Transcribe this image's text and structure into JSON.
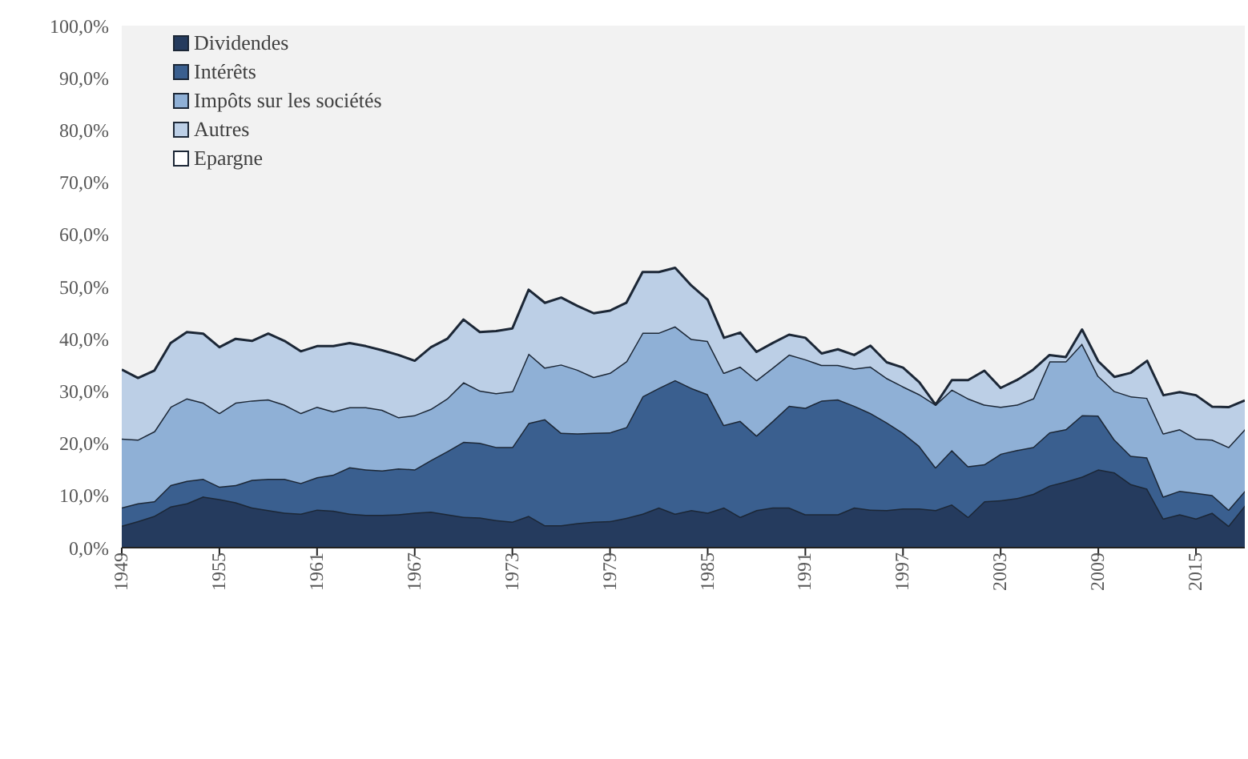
{
  "chart_data": {
    "type": "area",
    "stacked": true,
    "x": [
      1949,
      1950,
      1951,
      1952,
      1953,
      1954,
      1955,
      1956,
      1957,
      1958,
      1959,
      1960,
      1961,
      1962,
      1963,
      1964,
      1965,
      1966,
      1967,
      1968,
      1969,
      1970,
      1971,
      1972,
      1973,
      1974,
      1975,
      1976,
      1977,
      1978,
      1979,
      1980,
      1981,
      1982,
      1983,
      1984,
      1985,
      1986,
      1987,
      1988,
      1989,
      1990,
      1991,
      1992,
      1993,
      1994,
      1995,
      1996,
      1997,
      1998,
      1999,
      2000,
      2001,
      2002,
      2003,
      2004,
      2005,
      2006,
      2007,
      2008,
      2009,
      2010,
      2011,
      2012,
      2013,
      2014,
      2015,
      2016,
      2017,
      2018
    ],
    "series": [
      {
        "name": "Dividendes",
        "color": "#253b5e",
        "values": [
          4.2,
          5.1,
          6.1,
          7.9,
          8.5,
          9.8,
          9.3,
          8.7,
          7.7,
          7.2,
          6.7,
          6.5,
          7.3,
          7.1,
          6.5,
          6.3,
          6.3,
          6.4,
          6.7,
          6.9,
          6.4,
          5.9,
          5.8,
          5.3,
          5,
          6.1,
          4.3,
          4.3,
          4.7,
          5,
          5.1,
          5.7,
          6.5,
          7.7,
          6.5,
          7.2,
          6.7,
          7.7,
          5.9,
          7.2,
          7.7,
          7.7,
          6.4,
          6.4,
          6.4,
          7.7,
          7.3,
          7.2,
          7.5,
          7.5,
          7.2,
          8.3,
          5.9,
          8.9,
          9.1,
          9.5,
          10.3,
          11.9,
          12.7,
          13.6,
          15,
          14.4,
          12.2,
          11.3,
          5.6,
          6.4,
          5.6,
          6.7,
          4.2,
          8.1
        ]
      },
      {
        "name": "Intérêts",
        "color": "#3a5f8f",
        "values": [
          3.5,
          3.4,
          2.8,
          4.1,
          4.3,
          3.4,
          2.4,
          3.3,
          5.3,
          6,
          6.5,
          5.9,
          6.2,
          6.9,
          8.9,
          8.7,
          8.5,
          8.8,
          8.3,
          9.9,
          12.1,
          14.4,
          14.3,
          14,
          14.3,
          17.8,
          20.3,
          17.7,
          17.2,
          17,
          17,
          17.4,
          22.5,
          22.9,
          25.6,
          23.4,
          22.7,
          15.8,
          18.4,
          14.3,
          16.6,
          19.5,
          20.4,
          21.8,
          22,
          19.5,
          18.5,
          16.8,
          14.5,
          12,
          8.2,
          10.4,
          9.7,
          7.1,
          8.9,
          9.2,
          9,
          10.2,
          10,
          11.8,
          10.3,
          6.3,
          5.4,
          6,
          4.2,
          4.5,
          4.9,
          3.4,
          3.1,
          2.8
        ]
      },
      {
        "name": "Impôts sur les sociétés",
        "color": "#8fb0d6",
        "values": [
          13.2,
          12.2,
          13.4,
          15,
          15.8,
          14.6,
          14.1,
          15.8,
          15.2,
          15.2,
          14.2,
          13.4,
          13.5,
          12.1,
          11.5,
          11.9,
          11.6,
          9.8,
          10.4,
          9.8,
          10.1,
          11.4,
          10,
          10.3,
          10.7,
          13.3,
          9.9,
          13.1,
          12.2,
          10.7,
          11.4,
          12.6,
          12.2,
          10.6,
          10.3,
          9.4,
          10.2,
          10,
          10.4,
          10.6,
          10.2,
          9.8,
          9.3,
          6.8,
          6.6,
          7.1,
          8.9,
          8.5,
          8.9,
          9.9,
          12,
          11.6,
          13,
          11.4,
          9,
          8.7,
          9.3,
          13.6,
          13,
          13.7,
          7.6,
          9.3,
          11.4,
          11.4,
          12.1,
          11.8,
          10.4,
          10.6,
          12,
          11.8
        ]
      },
      {
        "name": "Autres",
        "color": "#bccfe6",
        "values": [
          13.2,
          11.8,
          11.6,
          12.2,
          12.7,
          13.2,
          12.6,
          12.2,
          11.4,
          12.6,
          12.2,
          11.8,
          11.6,
          12.5,
          12.3,
          11.7,
          11.4,
          11.9,
          10.4,
          11.8,
          11.4,
          12,
          11.2,
          11.9,
          12,
          12.2,
          12.4,
          12.8,
          12.2,
          12.2,
          11.9,
          11.2,
          11.6,
          11.6,
          11.2,
          10.2,
          7.9,
          6.7,
          6.5,
          5.4,
          4.7,
          3.8,
          4.1,
          2.2,
          3,
          2.6,
          4,
          3,
          3.6,
          2.3,
          0,
          1.8,
          3.5,
          6.5,
          3.6,
          4.7,
          5.5,
          1.2,
          0.8,
          2.7,
          2.8,
          2.7,
          4.5,
          7.1,
          7.3,
          7.1,
          8.3,
          6.3,
          7.6,
          5.5
        ]
      },
      {
        "name": "Epargne",
        "color": "#ffffff",
        "values": [
          null,
          null,
          null,
          null,
          null,
          null,
          null,
          null,
          null,
          null,
          null,
          null,
          null,
          null,
          null,
          null,
          null,
          null,
          null,
          null,
          null,
          null,
          null,
          null,
          null,
          null,
          null,
          null,
          null,
          null,
          null,
          null,
          null,
          null,
          null,
          null,
          null,
          null,
          null,
          null,
          null,
          null,
          null,
          null,
          null,
          null,
          null,
          null,
          null,
          null,
          null,
          null,
          null,
          null,
          null,
          null,
          null,
          null,
          null,
          null,
          null,
          null,
          null,
          null,
          null,
          null,
          null,
          null,
          null,
          null
        ]
      }
    ],
    "xlim": [
      1949,
      2018
    ],
    "xticks": [
      1949,
      1955,
      1961,
      1967,
      1973,
      1979,
      1985,
      1991,
      1997,
      2003,
      2009,
      2015
    ],
    "ylim": [
      0,
      100
    ],
    "yticks": [
      {
        "value": 0,
        "label": "0,0%"
      },
      {
        "value": 10,
        "label": "10,0%"
      },
      {
        "value": 20,
        "label": "20,0%"
      },
      {
        "value": 30,
        "label": "30,0%"
      },
      {
        "value": 40,
        "label": "40,0%"
      },
      {
        "value": 50,
        "label": "50,0%"
      },
      {
        "value": 60,
        "label": "60,0%"
      },
      {
        "value": 70,
        "label": "70,0%"
      },
      {
        "value": 80,
        "label": "80,0%"
      },
      {
        "value": 90,
        "label": "90,0%"
      },
      {
        "value": 100,
        "label": "100,0%"
      }
    ],
    "grid": false,
    "legend": "top left",
    "line_style": "solid"
  }
}
